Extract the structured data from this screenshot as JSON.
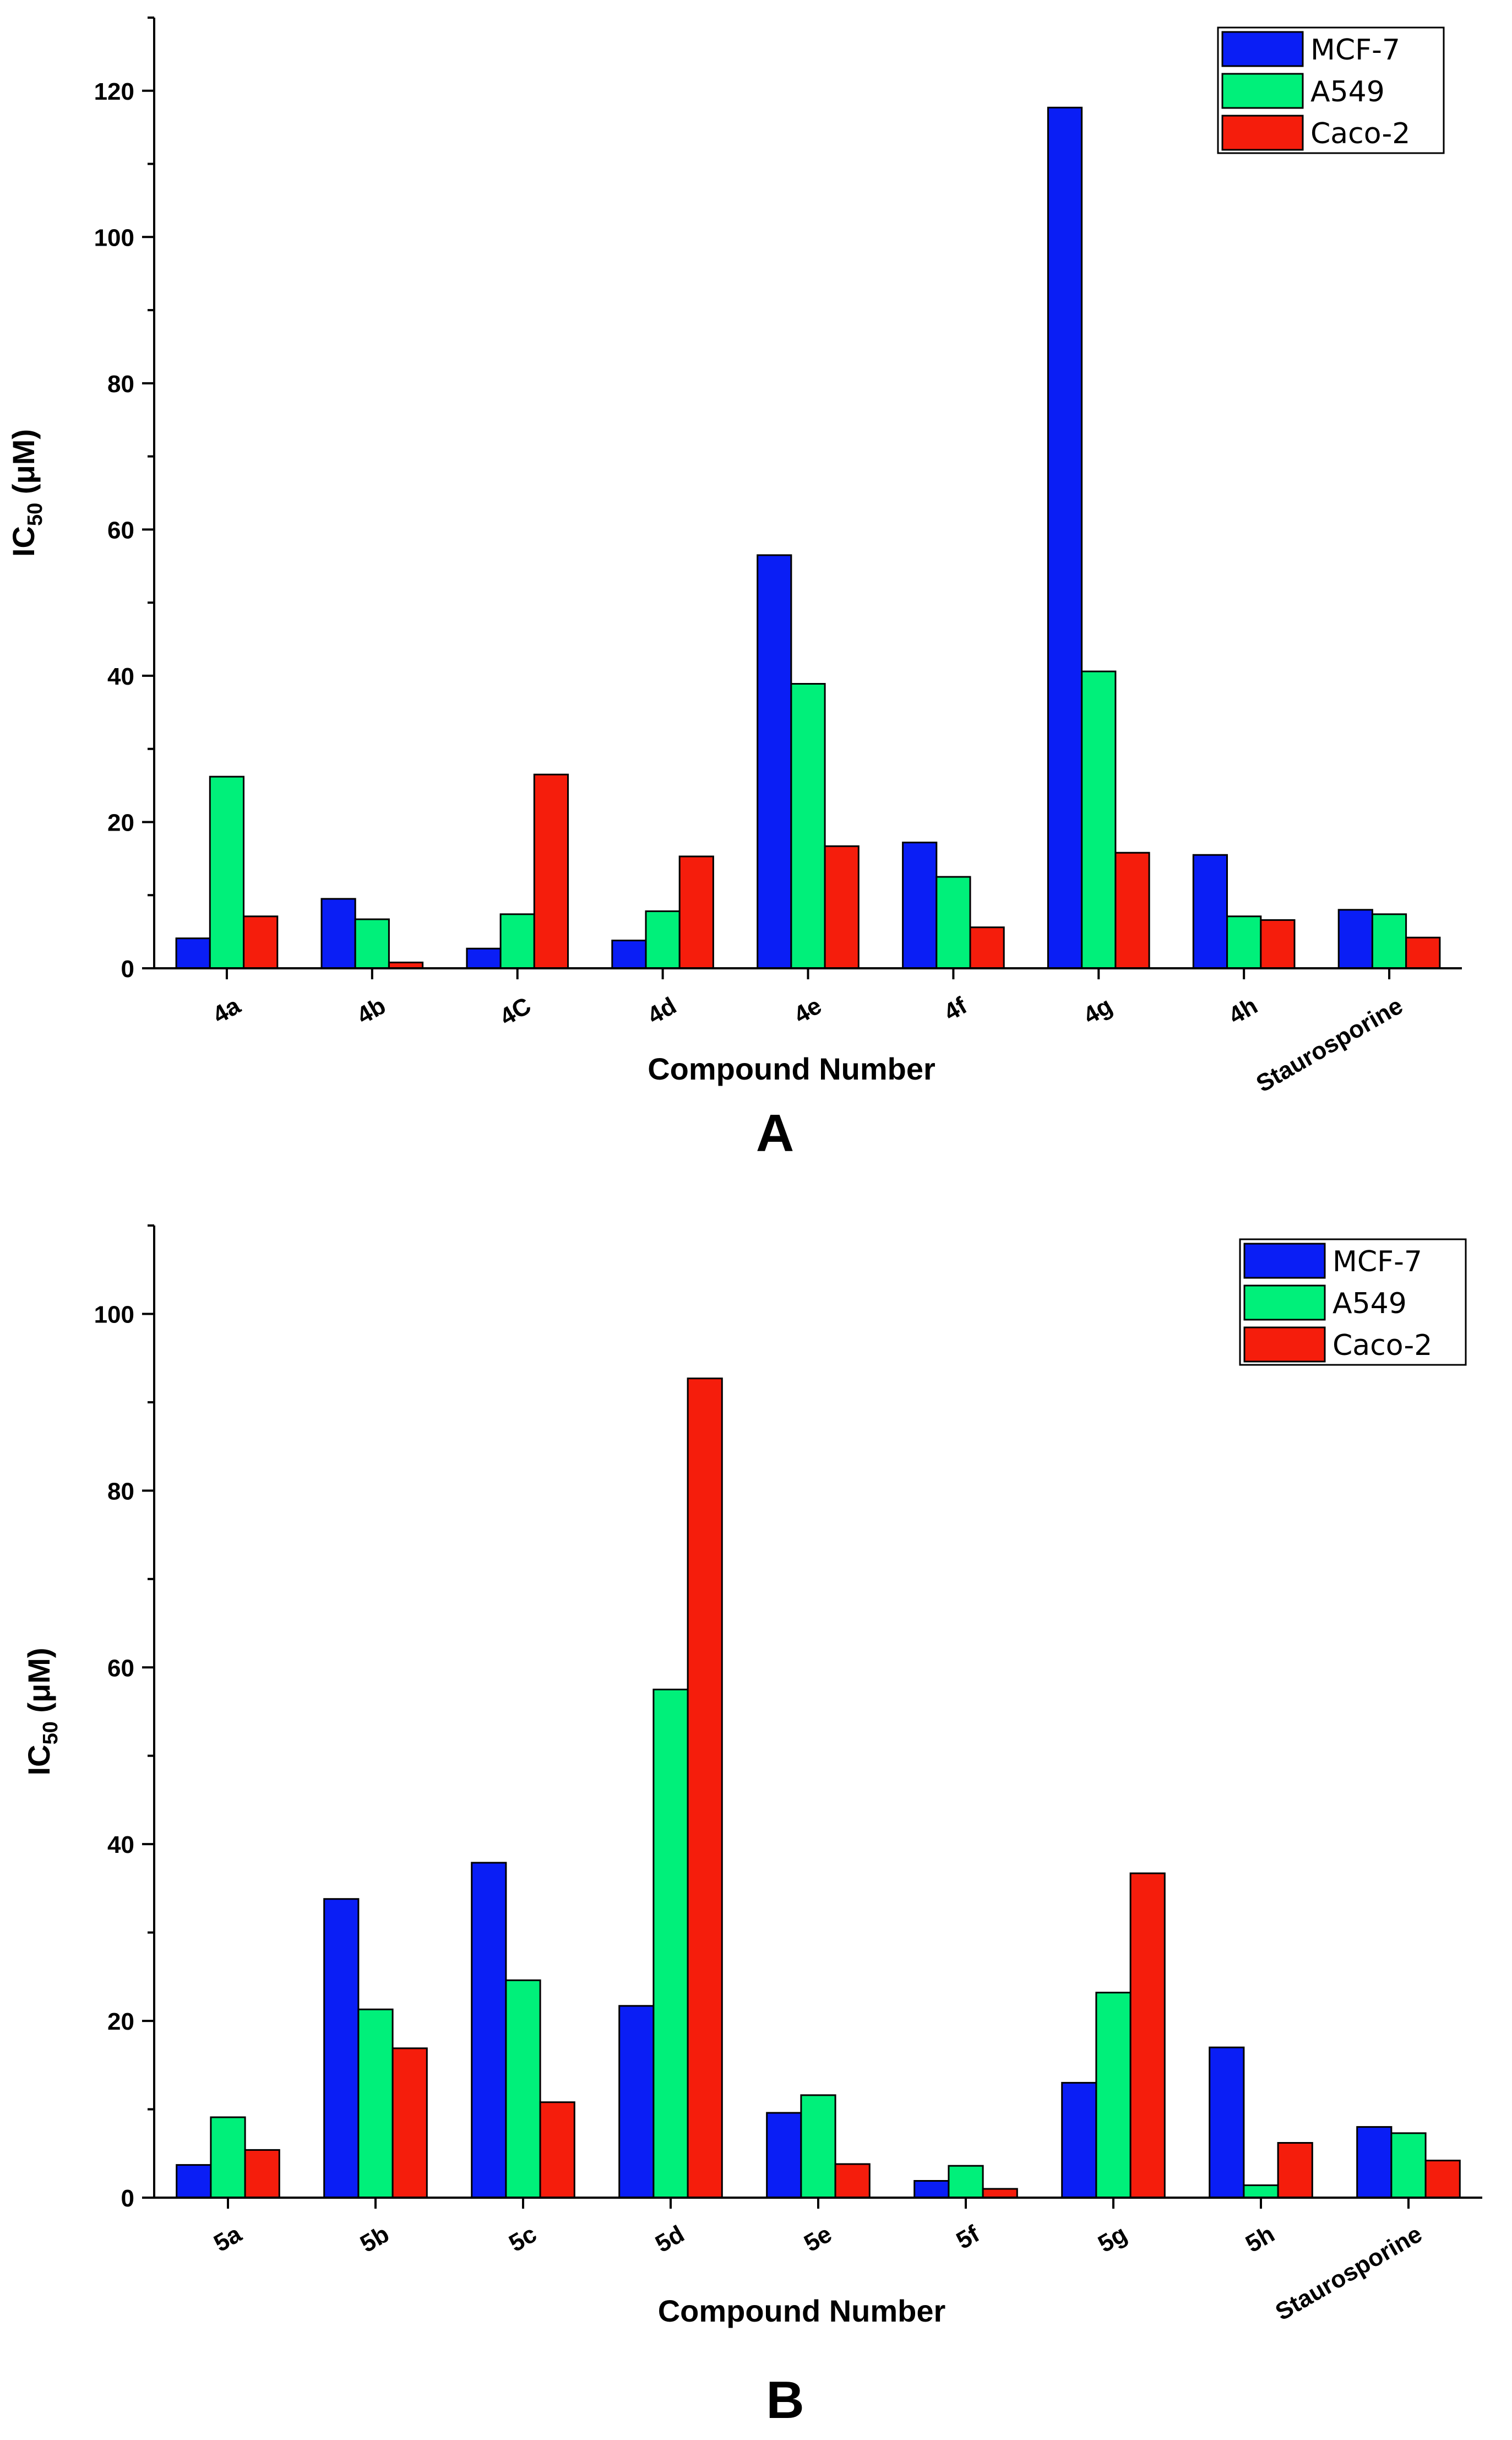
{
  "chart_data": [
    {
      "type": "bar",
      "panel_label": "A",
      "xlabel": "Compound Number",
      "ylabel_main": "IC",
      "ylabel_sub": "50",
      "ylabel_unit": " (μM)",
      "categories": [
        "4a",
        "4b",
        "4C",
        "4d",
        "4e",
        "4f",
        "4g",
        "4h",
        "Staurosporine"
      ],
      "ylim": [
        0,
        130
      ],
      "yticks": [
        0,
        20,
        40,
        60,
        80,
        100,
        120
      ],
      "legend_position": "top-right",
      "series": [
        {
          "name": "MCF-7",
          "color": "#0a1ef5",
          "values": [
            4.1,
            9.5,
            2.7,
            3.8,
            56.5,
            17.2,
            117.7,
            15.5,
            8.0
          ]
        },
        {
          "name": "A549",
          "color": "#00f07a",
          "values": [
            26.2,
            6.7,
            7.4,
            7.8,
            38.9,
            12.5,
            40.6,
            7.1,
            7.4
          ]
        },
        {
          "name": "Caco-2",
          "color": "#f51d0c",
          "values": [
            7.1,
            0.8,
            26.5,
            15.3,
            16.7,
            5.6,
            15.8,
            6.6,
            4.2
          ]
        }
      ]
    },
    {
      "type": "bar",
      "panel_label": "B",
      "xlabel": "Compound Number",
      "ylabel_main": "IC",
      "ylabel_sub": "50",
      "ylabel_unit": " (μM)",
      "categories": [
        "5a",
        "5b",
        "5c",
        "5d",
        "5e",
        "5f",
        "5g",
        "5h",
        "Staurosporine"
      ],
      "ylim": [
        0,
        110
      ],
      "yticks": [
        0,
        20,
        40,
        60,
        80,
        100
      ],
      "legend_position": "top-right",
      "series": [
        {
          "name": "MCF-7",
          "color": "#0a1ef5",
          "values": [
            3.7,
            33.8,
            37.9,
            21.7,
            9.6,
            1.9,
            13.0,
            17.0,
            8.0
          ]
        },
        {
          "name": "A549",
          "color": "#00f07a",
          "values": [
            9.1,
            21.3,
            24.6,
            57.5,
            11.6,
            3.6,
            23.2,
            1.4,
            7.3
          ]
        },
        {
          "name": "Caco-2",
          "color": "#f51d0c",
          "values": [
            5.4,
            16.9,
            10.8,
            92.7,
            3.8,
            1.0,
            36.7,
            6.2,
            4.2
          ]
        }
      ]
    }
  ]
}
